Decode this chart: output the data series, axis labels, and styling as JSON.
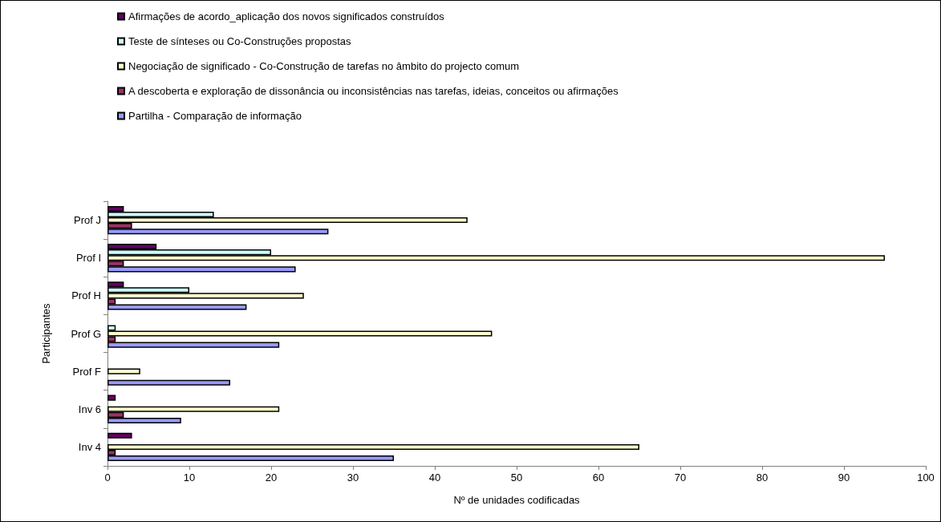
{
  "chart_data": {
    "type": "bar",
    "orientation": "horizontal",
    "xlabel": "Nº de unidades codificadas",
    "ylabel": "Participantes",
    "categories": [
      "Prof J",
      "Prof I",
      "Prof H",
      "Prof G",
      "Prof F",
      "Inv 6",
      "Inv 4"
    ],
    "series": [
      {
        "name": "Afirmações de acordo_aplicação dos novos significados construídos",
        "color": "#660066",
        "values": [
          2,
          6,
          2,
          0,
          0,
          1,
          3
        ]
      },
      {
        "name": "Teste de sínteses ou Co-Construções propostas",
        "color": "#ccffff",
        "values": [
          13,
          20,
          10,
          1,
          0,
          0,
          0
        ]
      },
      {
        "name": "Negociação de significado - Co-Construção de tarefas no âmbito do projecto comum",
        "color": "#ffffcc",
        "values": [
          44,
          95,
          24,
          47,
          4,
          21,
          65
        ]
      },
      {
        "name": "A descoberta e exploração de dissonância ou inconsistências nas tarefas, ideias, conceitos ou afirmações",
        "color": "#993366",
        "values": [
          3,
          2,
          1,
          1,
          0,
          2,
          1
        ]
      },
      {
        "name": "Partilha - Comparação de informação",
        "color": "#9999ff",
        "values": [
          27,
          23,
          17,
          21,
          15,
          9,
          35
        ]
      }
    ],
    "xlim": [
      0,
      100
    ],
    "xticks": [
      0,
      10,
      20,
      30,
      40,
      50,
      60,
      70,
      80,
      90,
      100
    ],
    "grid": false,
    "legend": "top"
  }
}
